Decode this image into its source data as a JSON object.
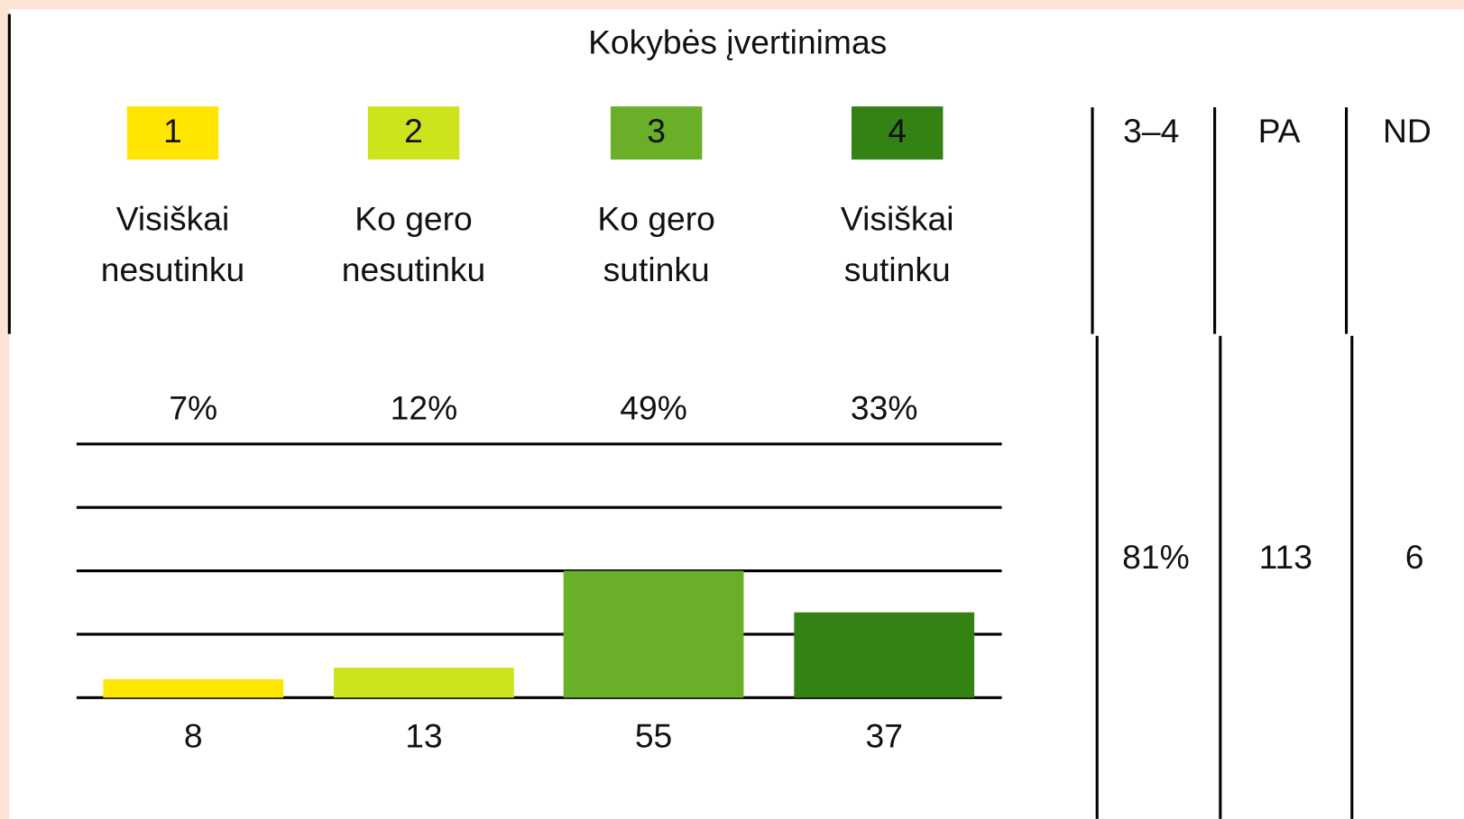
{
  "chart_data": {
    "type": "bar",
    "title": "Kokybės įvertinimas",
    "categories": [
      "1",
      "2",
      "3",
      "4"
    ],
    "category_labels": [
      [
        "Visiškai",
        "nesutinku"
      ],
      [
        "Ko gero",
        "nesutinku"
      ],
      [
        "Ko gero",
        "sutinku"
      ],
      [
        "Visiškai",
        "sutinku"
      ]
    ],
    "percentages": [
      "7%",
      "12%",
      "49%",
      "33%"
    ],
    "values": [
      8,
      13,
      55,
      37
    ],
    "colors": [
      "#ffe500",
      "#cde31c",
      "#6aaf28",
      "#338213"
    ],
    "box_text_colors": [
      "#111111",
      "#111111",
      "#ffffff",
      "#ffffff"
    ],
    "ylim": [
      0,
      110
    ],
    "yticks": [
      0,
      27.5,
      55,
      82.5,
      110
    ],
    "grid": true,
    "summary": [
      {
        "header": "3–4",
        "value": "81%"
      },
      {
        "header": "PA",
        "value": 113
      },
      {
        "header": "ND",
        "value": 6
      }
    ]
  }
}
